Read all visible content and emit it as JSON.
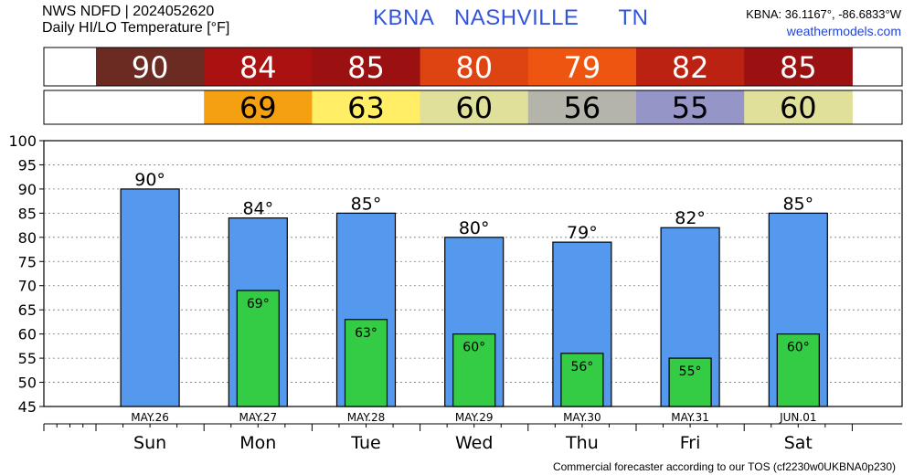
{
  "header": {
    "line1": "NWS NDFD | 2024052620",
    "line2": "Daily HI/LO Temperature [°F]",
    "station": "KBNA",
    "city": "NASHVILLE",
    "state": "TN",
    "coords": "KBNA: 36.1167°, -86.6833°W",
    "website": "weathermodels.com"
  },
  "footer": {
    "text": "Commercial forecaster according to our TOS (cf2230w0UKBNA0p230)"
  },
  "colors": {
    "hi_bar": "#5599ee",
    "lo_bar": "#33cc44",
    "hi_cells": [
      "#6b2a22",
      "#aa1111",
      "#9b1010",
      "#dd4411",
      "#ee5511",
      "#bb2211",
      "#9b1010"
    ],
    "lo_cells": [
      "#f5a011",
      "#ffee66",
      "#e0e09a",
      "#b4b4aa",
      "#9595c8",
      "#e0e09a"
    ]
  },
  "chart_data": {
    "type": "bar",
    "categories": [
      "Sun",
      "Mon",
      "Tue",
      "Wed",
      "Thu",
      "Fri",
      "Sat"
    ],
    "dates": [
      "MAY.26",
      "MAY.27",
      "MAY.28",
      "MAY.29",
      "MAY.30",
      "MAY.31",
      "JUN.01"
    ],
    "series": [
      {
        "name": "HI",
        "values": [
          90,
          84,
          85,
          80,
          79,
          82,
          85
        ]
      },
      {
        "name": "LO",
        "values": [
          null,
          69,
          63,
          60,
          56,
          55,
          60
        ]
      }
    ],
    "ylim": [
      45,
      100
    ],
    "yticks": [
      45,
      50,
      55,
      60,
      65,
      70,
      75,
      80,
      85,
      90,
      95,
      100
    ],
    "grid": true,
    "degree_symbol": "°"
  }
}
